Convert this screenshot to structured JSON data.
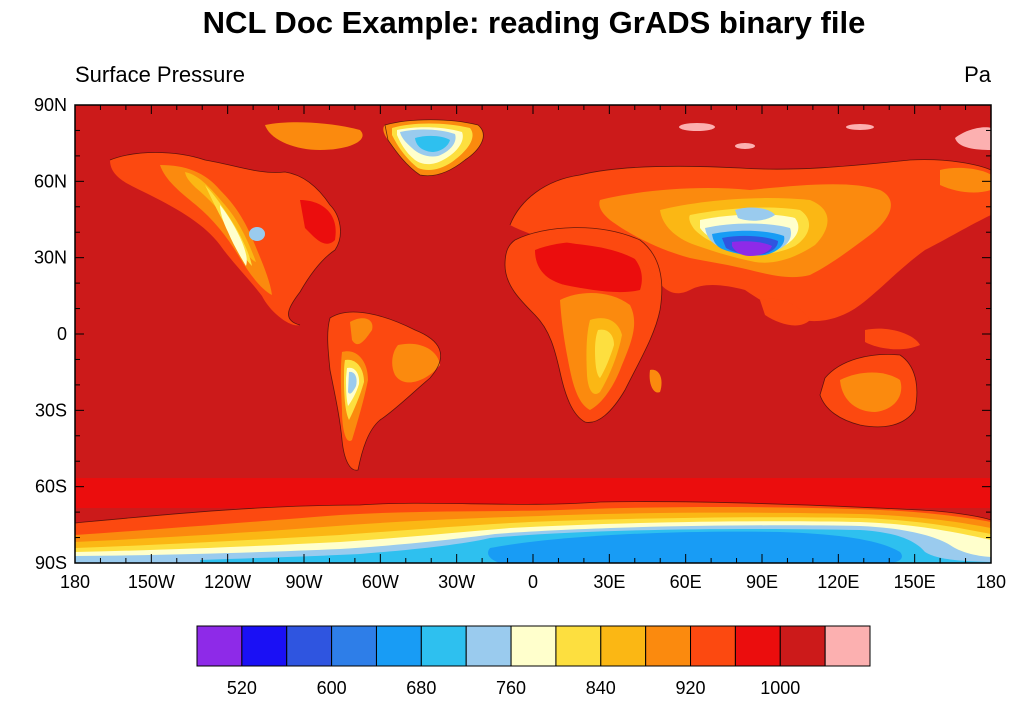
{
  "title": "NCL Doc Example: reading GrADS binary file",
  "left_subtitle": "Surface Pressure",
  "right_subtitle": "Pa",
  "colors": {
    "ocean": "#cc1a1a",
    "levels": [
      "#8e2ae8",
      "#1a10f5",
      "#2f55e0",
      "#2e7ee8",
      "#189cf5",
      "#2ec0ef",
      "#9acbee",
      "#ffffcc",
      "#fddf3f",
      "#fbb714",
      "#fb8a0e",
      "#fc4910",
      "#eb0d0d",
      "#cc1a1a",
      "#fcb0b0"
    ]
  },
  "map_data": {
    "type": "filled-contour",
    "projection": "cylindrical-equidistant",
    "lon_range": [
      -180,
      180
    ],
    "lat_range": [
      -90,
      90
    ],
    "x_ticks": [
      "180",
      "150W",
      "120W",
      "90W",
      "60W",
      "30W",
      "0",
      "30E",
      "60E",
      "90E",
      "120E",
      "150E",
      "180"
    ],
    "y_ticks": [
      "90N",
      "60N",
      "30N",
      "0",
      "30S",
      "60S",
      "90S"
    ],
    "colorbar_labels": [
      "520",
      "600",
      "680",
      "760",
      "840",
      "920",
      "1000"
    ]
  }
}
